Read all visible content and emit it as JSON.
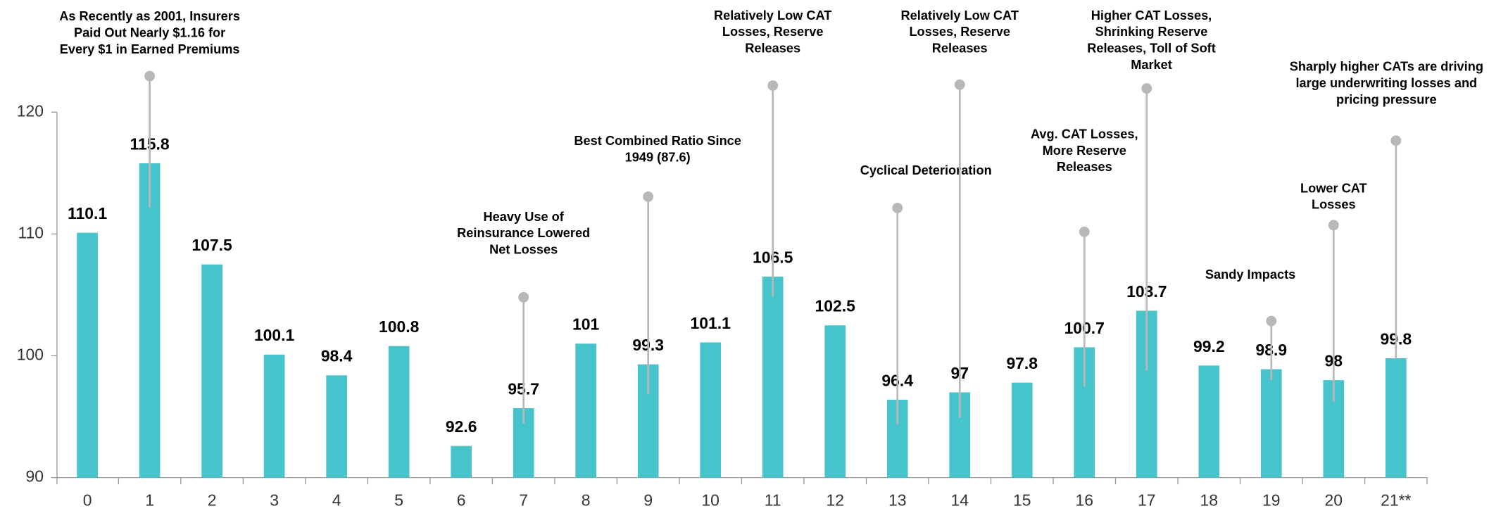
{
  "chart_data": {
    "type": "bar",
    "categories": [
      "0",
      "1",
      "2",
      "3",
      "4",
      "5",
      "6",
      "7",
      "8",
      "9",
      "10",
      "11",
      "12",
      "13",
      "14",
      "15",
      "16",
      "17",
      "18",
      "19",
      "20",
      "21**"
    ],
    "values": [
      110.1,
      115.8,
      107.5,
      100.1,
      98.4,
      100.8,
      92.6,
      95.7,
      101,
      99.3,
      101.1,
      106.5,
      102.5,
      96.4,
      97,
      97.8,
      100.7,
      103.7,
      99.2,
      98.9,
      98,
      99.8
    ],
    "color": "#47c4cb",
    "ylim": [
      90,
      120
    ],
    "yticks": [
      90,
      100,
      110,
      120
    ],
    "grid": false,
    "annotations": [
      {
        "category": "1",
        "text": [
          "As Recently as 2001, Insurers",
          "Paid Out Nearly $1.16 for",
          "Every $1 in Earned Premiums"
        ]
      },
      {
        "category": "7",
        "text": [
          "Heavy Use of",
          "Reinsurance Lowered",
          "Net Losses"
        ]
      },
      {
        "category": "9",
        "text": [
          "Best Combined Ratio Since",
          "1949 (87.6)"
        ]
      },
      {
        "category": "11",
        "text": [
          "Relatively Low CAT",
          "Losses, Reserve",
          "Releases"
        ]
      },
      {
        "category": "13",
        "text": [
          "Cyclical Deterioration"
        ]
      },
      {
        "category": "14",
        "text": [
          "Relatively Low CAT",
          "Losses, Reserve",
          "Releases"
        ]
      },
      {
        "category": "16",
        "text": [
          "Avg. CAT Losses,",
          "More Reserve",
          "Releases"
        ]
      },
      {
        "category": "17",
        "text": [
          "Higher CAT Losses,",
          "Shrinking Reserve",
          "Releases, Toll of Soft",
          "Market"
        ]
      },
      {
        "category": "19",
        "text": [
          "Sandy Impacts"
        ]
      },
      {
        "category": "20",
        "text": [
          "Lower CAT",
          "Losses"
        ]
      },
      {
        "category": "21**",
        "text": [
          "Sharply higher CATs are driving",
          "large underwriting losses and",
          "pricing pressure"
        ]
      }
    ]
  }
}
